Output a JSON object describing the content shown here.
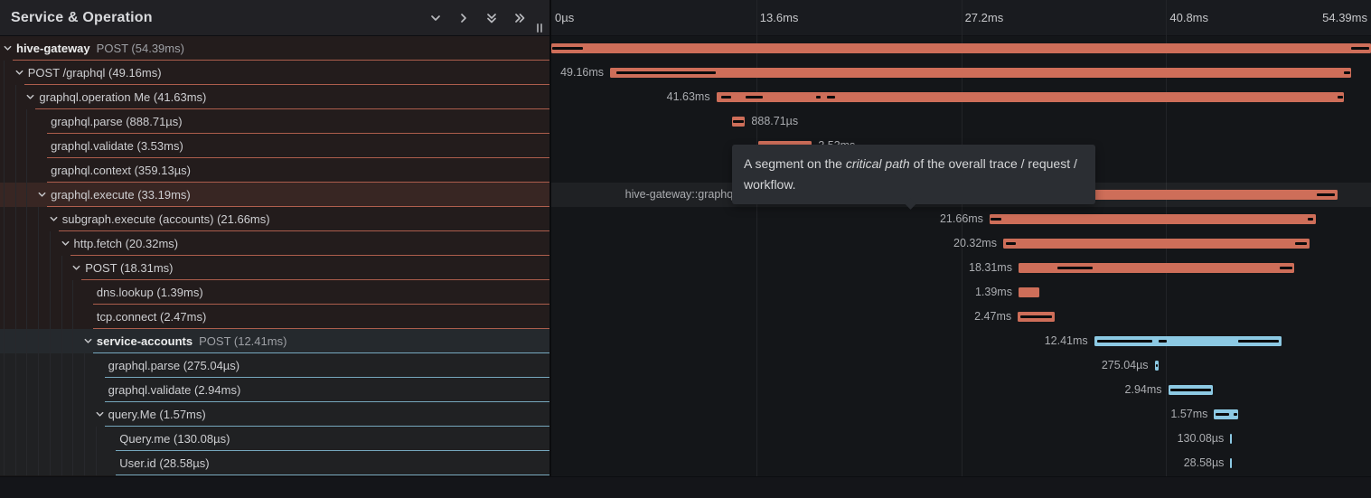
{
  "left_header": {
    "title": "Service & Operation",
    "icons": [
      "chevron-down-icon",
      "chevron-right-icon",
      "double-chevron-down-icon",
      "double-chevron-right-icon"
    ],
    "resize_handle_icon": "grip-vertical-icon"
  },
  "axis": {
    "total_ms": 54.39,
    "ticks": [
      {
        "label": "0µs",
        "ms": 0,
        "align": "left"
      },
      {
        "label": "13.6ms",
        "ms": 13.6,
        "align": "left"
      },
      {
        "label": "27.2ms",
        "ms": 27.2,
        "align": "left"
      },
      {
        "label": "40.8ms",
        "ms": 40.8,
        "align": "left"
      },
      {
        "label": "54.39ms",
        "ms": 54.39,
        "align": "right"
      }
    ],
    "gridlines_ms": [
      13.6,
      27.2,
      40.8
    ]
  },
  "tooltip": {
    "before": "A segment on the ",
    "italic": "critical path",
    "after": " of the overall trace / request / workflow."
  },
  "colors": {
    "salmon": "#CE6E59",
    "blue": "#8CC9E3",
    "critical_path": "#0B0B0C"
  },
  "rows": [
    {
      "service": "hive-gateway",
      "label": "POST (54.39ms)",
      "level": 0,
      "expandable": true,
      "color": "salmon",
      "start_ms": 0,
      "duration_ms": 54.39,
      "duration_label": "",
      "label_side": "none",
      "critical_path_segments_ms": [
        [
          0,
          2.05
        ],
        [
          53.1,
          54.25
        ]
      ],
      "hover": false
    },
    {
      "service": "",
      "label": "POST /graphql (49.16ms)",
      "level": 1,
      "expandable": true,
      "color": "salmon",
      "start_ms": 3.9,
      "duration_ms": 49.16,
      "duration_label": "49.16ms",
      "label_side": "left",
      "critical_path_segments_ms": [
        [
          4.3,
          10.9
        ],
        [
          52.6,
          53.0
        ]
      ],
      "hover": false
    },
    {
      "service": "",
      "label": "graphql.operation Me (41.63ms)",
      "level": 2,
      "expandable": true,
      "color": "salmon",
      "start_ms": 10.95,
      "duration_ms": 41.63,
      "duration_label": "41.63ms",
      "label_side": "left",
      "critical_path_segments_ms": [
        [
          11.25,
          11.95
        ],
        [
          12.9,
          14.05
        ],
        [
          17.6,
          17.9
        ],
        [
          18.3,
          18.85
        ],
        [
          52.15,
          52.55
        ]
      ],
      "hover": false
    },
    {
      "service": "",
      "label": "graphql.parse (888.71µs)",
      "level": 3,
      "expandable": false,
      "color": "salmon",
      "start_ms": 11.97,
      "duration_ms": 0.889,
      "duration_label": "888.71µs",
      "label_side": "right",
      "critical_path_segments_ms": [
        [
          12.08,
          12.75
        ]
      ],
      "hover": false
    },
    {
      "service": "",
      "label": "graphql.validate (3.53ms)",
      "level": 3,
      "expandable": false,
      "color": "salmon",
      "start_ms": 13.76,
      "duration_ms": 3.53,
      "duration_label": "3.53ms",
      "label_side": "right",
      "critical_path_segments_ms": [
        [
          13.9,
          17.15
        ]
      ],
      "hover": false
    },
    {
      "service": "",
      "label": "graphql.context (359.13µs)",
      "level": 3,
      "expandable": false,
      "color": "salmon",
      "start_ms": 17.3,
      "duration_ms": 0.359,
      "duration_label": "359.13µs",
      "label_side": "right",
      "critical_path_segments_ms": [],
      "hover": false
    },
    {
      "service": "",
      "label": "graphql.execute (33.19ms)",
      "level": 3,
      "expandable": true,
      "color": "salmon",
      "start_ms": 18.97,
      "duration_ms": 33.19,
      "duration_label": "hive-gateway::graphql.execute | 33.19ms",
      "label_side": "left",
      "critical_path_segments_ms": [
        [
          19.05,
          28.9
        ],
        [
          50.8,
          52.0
        ]
      ],
      "hover": true
    },
    {
      "service": "",
      "label": "subgraph.execute (accounts) (21.66ms)",
      "level": 4,
      "expandable": true,
      "color": "salmon",
      "start_ms": 29.08,
      "duration_ms": 21.66,
      "duration_label": "21.66ms",
      "label_side": "left",
      "critical_path_segments_ms": [
        [
          29.15,
          29.85
        ],
        [
          50.2,
          50.55
        ]
      ],
      "hover": false
    },
    {
      "service": "",
      "label": "http.fetch (20.32ms)",
      "level": 5,
      "expandable": true,
      "color": "salmon",
      "start_ms": 29.98,
      "duration_ms": 20.32,
      "duration_label": "20.32ms",
      "label_side": "left",
      "critical_path_segments_ms": [
        [
          30.15,
          30.8
        ],
        [
          49.35,
          50.15
        ]
      ],
      "hover": false
    },
    {
      "service": "",
      "label": "POST (18.31ms)",
      "level": 6,
      "expandable": true,
      "color": "salmon",
      "start_ms": 31.0,
      "duration_ms": 18.31,
      "duration_label": "18.31ms",
      "label_side": "left",
      "critical_path_segments_ms": [
        [
          33.6,
          35.9
        ],
        [
          48.35,
          49.2
        ]
      ],
      "hover": false
    },
    {
      "service": "",
      "label": "dns.lookup (1.39ms)",
      "level": 7,
      "expandable": false,
      "color": "salmon",
      "start_ms": 31.0,
      "duration_ms": 1.39,
      "duration_label": "1.39ms",
      "label_side": "left",
      "critical_path_segments_ms": [],
      "hover": false
    },
    {
      "service": "",
      "label": "tcp.connect (2.47ms)",
      "level": 7,
      "expandable": false,
      "color": "salmon",
      "start_ms": 30.95,
      "duration_ms": 2.47,
      "duration_label": "2.47ms",
      "label_side": "left",
      "critical_path_segments_ms": [
        [
          31.1,
          33.25
        ]
      ],
      "hover": false
    },
    {
      "service": "service-accounts",
      "label": "POST (12.41ms)",
      "level": 7,
      "expandable": true,
      "color": "blue",
      "start_ms": 36.02,
      "duration_ms": 12.41,
      "duration_label": "12.41ms",
      "label_side": "left",
      "critical_path_segments_ms": [
        [
          36.2,
          39.9
        ],
        [
          40.3,
          40.85
        ],
        [
          45.6,
          48.3
        ]
      ],
      "hover": false
    },
    {
      "service": "",
      "label": "graphql.parse (275.04µs)",
      "level": 8,
      "expandable": false,
      "color": "blue",
      "start_ms": 40.03,
      "duration_ms": 0.275,
      "duration_label": "275.04µs",
      "label_side": "left",
      "critical_path_segments_ms": [
        [
          40.08,
          40.23
        ]
      ],
      "hover": false
    },
    {
      "service": "",
      "label": "graphql.validate (2.94ms)",
      "level": 8,
      "expandable": false,
      "color": "blue",
      "start_ms": 40.93,
      "duration_ms": 2.94,
      "duration_label": "2.94ms",
      "label_side": "left",
      "critical_path_segments_ms": [
        [
          41.05,
          43.8
        ]
      ],
      "hover": false
    },
    {
      "service": "",
      "label": "query.Me (1.57ms)",
      "level": 8,
      "expandable": true,
      "color": "blue",
      "start_ms": 43.98,
      "duration_ms": 1.57,
      "duration_label": "1.57ms",
      "label_side": "left",
      "critical_path_segments_ms": [
        [
          44.1,
          45.0
        ],
        [
          45.25,
          45.5
        ]
      ],
      "hover": false
    },
    {
      "service": "",
      "label": "Query.me (130.08µs)",
      "level": 9,
      "expandable": false,
      "color": "blue",
      "start_ms": 45.05,
      "duration_ms": 0.13,
      "duration_label": "130.08µs",
      "label_side": "left",
      "critical_path_segments_ms": [],
      "hover": false
    },
    {
      "service": "",
      "label": "User.id (28.58µs)",
      "level": 9,
      "expandable": false,
      "color": "blue",
      "start_ms": 45.06,
      "duration_ms": 0.029,
      "duration_label": "28.58µs",
      "label_side": "left",
      "critical_path_segments_ms": [],
      "hover": false
    }
  ]
}
